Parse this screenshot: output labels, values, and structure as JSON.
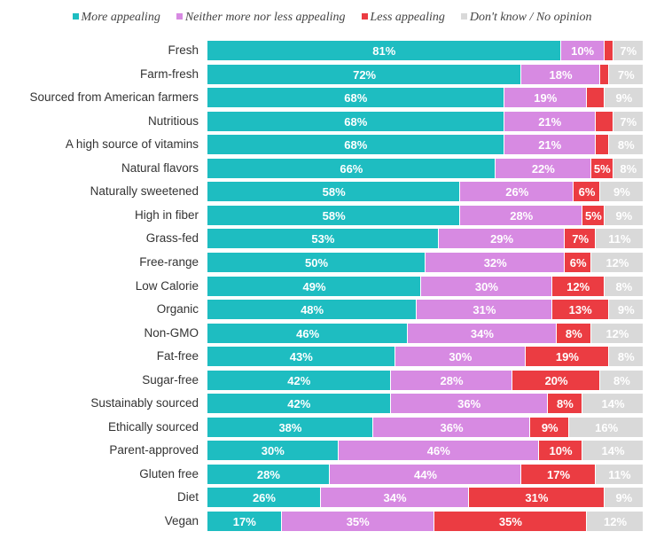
{
  "chart_data": {
    "type": "bar",
    "orientation": "horizontal",
    "stacked": true,
    "legend_placement": "top",
    "grid": false,
    "xlim": [
      0,
      100
    ],
    "series": [
      {
        "name": "More appealing",
        "color": "#1ebdc1",
        "values": [
          81,
          72,
          68,
          68,
          68,
          66,
          58,
          58,
          53,
          50,
          49,
          48,
          46,
          43,
          42,
          42,
          38,
          30,
          28,
          26,
          17
        ]
      },
      {
        "name": "Neither more nor less appealing",
        "color": "#d78ae2",
        "values": [
          10,
          18,
          19,
          21,
          21,
          22,
          26,
          28,
          29,
          32,
          30,
          31,
          34,
          30,
          28,
          36,
          36,
          46,
          44,
          34,
          35
        ]
      },
      {
        "name": "Less appealing",
        "color": "#eb3c42",
        "values": [
          2,
          2,
          4,
          4,
          3,
          5,
          6,
          5,
          7,
          6,
          12,
          13,
          8,
          19,
          20,
          8,
          9,
          10,
          17,
          31,
          35
        ]
      },
      {
        "name": "Don't know / No opinion",
        "color": "#d9d9d9",
        "values": [
          7,
          7,
          9,
          7,
          8,
          8,
          9,
          9,
          11,
          12,
          8,
          9,
          12,
          8,
          8,
          14,
          16,
          14,
          11,
          9,
          12
        ]
      }
    ],
    "labeled": [
      [
        true,
        true,
        true,
        true,
        true,
        true,
        true,
        true,
        true,
        true,
        true,
        true,
        true,
        true,
        true,
        true,
        true,
        true,
        true,
        true,
        true
      ],
      [
        true,
        true,
        true,
        true,
        true,
        true,
        true,
        true,
        true,
        true,
        true,
        true,
        true,
        true,
        true,
        true,
        true,
        true,
        true,
        true,
        true
      ],
      [
        false,
        false,
        false,
        false,
        false,
        true,
        true,
        true,
        true,
        true,
        true,
        true,
        true,
        true,
        true,
        true,
        true,
        true,
        true,
        true,
        true
      ],
      [
        true,
        true,
        true,
        true,
        true,
        true,
        true,
        true,
        true,
        true,
        true,
        true,
        true,
        true,
        true,
        true,
        true,
        true,
        true,
        true,
        true
      ]
    ],
    "categories": [
      "Fresh",
      "Farm-fresh",
      "Sourced from American farmers",
      "Nutritious",
      "A high source of vitamins",
      "Natural flavors",
      "Naturally sweetened",
      "High in fiber",
      "Grass-fed",
      "Free-range",
      "Low Calorie",
      "Organic",
      "Non-GMO",
      "Fat-free",
      "Sugar-free",
      "Sustainably sourced",
      "Ethically sourced",
      "Parent-approved",
      "Gluten free",
      "Diet",
      "Vegan"
    ],
    "value_suffix": "%"
  }
}
